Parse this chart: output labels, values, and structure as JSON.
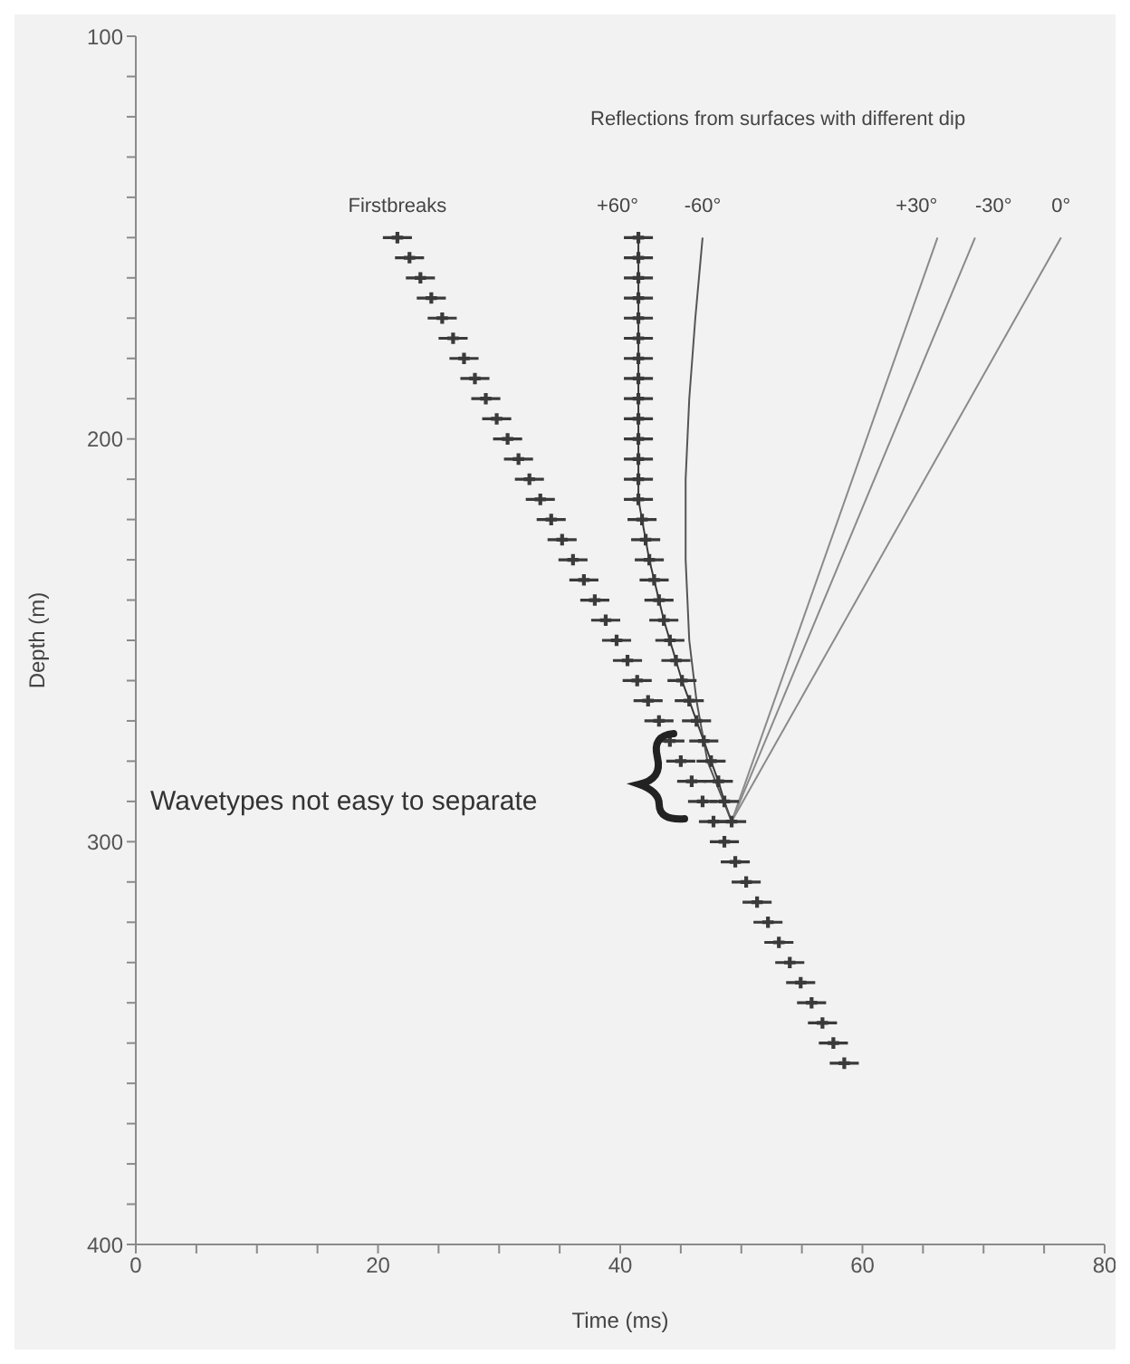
{
  "chart_data": {
    "type": "scatter",
    "xlabel": "Time (ms)",
    "ylabel": "Depth (m)",
    "xlim": [
      0,
      80
    ],
    "ylim": [
      400,
      100
    ],
    "xticks": [
      0,
      {
        "value": 5,
        "label": null
      },
      {
        "value": 10,
        "label": null
      },
      {
        "value": 15,
        "label": null
      },
      20,
      {
        "value": 25,
        "label": null
      },
      {
        "value": 30,
        "label": null
      },
      {
        "value": 35,
        "label": null
      },
      40,
      {
        "value": 45,
        "label": null
      },
      {
        "value": 50,
        "label": null
      },
      {
        "value": 55,
        "label": null
      },
      60,
      {
        "value": 65,
        "label": null
      },
      {
        "value": 70,
        "label": null
      },
      {
        "value": 75,
        "label": null
      },
      80
    ],
    "yticks": [
      100,
      {
        "value": 110,
        "label": null
      },
      {
        "value": 120,
        "label": null
      },
      {
        "value": 130,
        "label": null
      },
      {
        "value": 140,
        "label": null
      },
      {
        "value": 150,
        "label": null
      },
      {
        "value": 160,
        "label": null
      },
      {
        "value": 170,
        "label": null
      },
      {
        "value": 180,
        "label": null
      },
      {
        "value": 190,
        "label": null
      },
      200,
      {
        "value": 210,
        "label": null
      },
      {
        "value": 220,
        "label": null
      },
      {
        "value": 230,
        "label": null
      },
      {
        "value": 240,
        "label": null
      },
      {
        "value": 250,
        "label": null
      },
      {
        "value": 260,
        "label": null
      },
      {
        "value": 270,
        "label": null
      },
      {
        "value": 280,
        "label": null
      },
      {
        "value": 290,
        "label": null
      },
      300,
      {
        "value": 310,
        "label": null
      },
      {
        "value": 320,
        "label": null
      },
      {
        "value": 330,
        "label": null
      },
      {
        "value": 340,
        "label": null
      },
      {
        "value": 350,
        "label": null
      },
      {
        "value": 360,
        "label": null
      },
      {
        "value": 370,
        "label": null
      },
      {
        "value": 380,
        "label": null
      },
      {
        "value": 390,
        "label": null
      },
      400
    ],
    "marker": "cross",
    "line_style": "solid",
    "annotations": [
      "Reflections from surfaces with different dip",
      "Wavetypes not easy to separate"
    ],
    "series": [
      {
        "name": "Firstbreaks",
        "color": "#3a3a3a",
        "x": [
          21.6,
          22.6,
          23.5,
          24.4,
          25.3,
          26.2,
          27.1,
          28.0,
          28.9,
          29.8,
          30.7,
          31.6,
          32.5,
          33.4,
          34.3,
          35.2,
          36.1,
          37.0,
          37.9,
          38.8,
          39.7,
          40.6,
          41.4,
          42.3,
          43.2,
          44.1,
          45.0,
          45.9,
          46.8,
          47.7,
          48.6,
          49.5,
          50.4,
          51.3,
          52.2,
          53.1,
          54.0,
          54.9,
          55.8,
          56.7,
          57.6,
          58.5
        ],
        "values": [
          150,
          155,
          160,
          165,
          170,
          175,
          180,
          185,
          190,
          195,
          200,
          205,
          210,
          215,
          220,
          225,
          230,
          235,
          240,
          245,
          250,
          255,
          260,
          265,
          270,
          275,
          280,
          285,
          290,
          295,
          300,
          305,
          310,
          315,
          320,
          325,
          330,
          335,
          340,
          345,
          350,
          355
        ],
        "xerrors": [
          1.2,
          1.2,
          1.2,
          1.2,
          1.2,
          1.2,
          1.2,
          1.2,
          1.2,
          1.2,
          1.2,
          1.2,
          1.2,
          1.2,
          1.2,
          1.2,
          1.2,
          1.2,
          1.2,
          1.2,
          1.2,
          1.2,
          1.2,
          1.2,
          1.2,
          1.2,
          1.2,
          1.2,
          1.2,
          1.2,
          1.2,
          1.2,
          1.2,
          1.2,
          1.2,
          1.2,
          1.2,
          1.2,
          1.2,
          1.2,
          1.2,
          1.2
        ]
      },
      {
        "type": "line",
        "marker": "none",
        "color": "#3a3a3a",
        "x": [
          41.5,
          41.5,
          41.5,
          41.5,
          41.5,
          41.5,
          41.5,
          41.5,
          41.5,
          41.5,
          41.5,
          41.5,
          41.5,
          41.5,
          41.8,
          42.1,
          42.4,
          42.8,
          43.2,
          43.6,
          44.1,
          44.6,
          45.1,
          45.7,
          46.3,
          46.9,
          47.5,
          48.1,
          48.6,
          49.2
        ],
        "values": [
          150,
          155,
          160,
          165,
          170,
          175,
          180,
          185,
          190,
          195,
          200,
          205,
          210,
          215,
          220,
          225,
          230,
          235,
          240,
          245,
          250,
          255,
          260,
          265,
          270,
          275,
          280,
          285,
          290,
          295
        ]
      },
      {
        "name": "+60°",
        "type": "scatter",
        "color": "#3a3a3a",
        "x": [
          41.5,
          41.5,
          41.5,
          41.5,
          41.5,
          41.5,
          41.5,
          41.5,
          41.5,
          41.5,
          41.5,
          41.5,
          41.5,
          41.5,
          41.8,
          42.1,
          42.4,
          42.8,
          43.2,
          43.6,
          44.1,
          44.6,
          45.1,
          45.7,
          46.3,
          46.9,
          47.5,
          48.1,
          48.6,
          49.2
        ],
        "values": [
          150,
          155,
          160,
          165,
          170,
          175,
          180,
          185,
          190,
          195,
          200,
          205,
          210,
          215,
          220,
          225,
          230,
          235,
          240,
          245,
          250,
          255,
          260,
          265,
          270,
          275,
          280,
          285,
          290,
          295
        ],
        "xerrors": [
          1.2,
          1.2,
          1.2,
          1.2,
          1.2,
          1.2,
          1.2,
          1.2,
          1.2,
          1.2,
          1.2,
          1.2,
          1.2,
          1.2,
          1.2,
          1.2,
          1.2,
          1.2,
          1.2,
          1.2,
          1.2,
          1.2,
          1.2,
          1.2,
          1.2,
          1.2,
          1.2,
          1.2,
          1.2,
          1.2
        ]
      },
      {
        "name": "-60°",
        "type": "line",
        "marker": "none",
        "color": "#555555",
        "x": [
          46.8,
          46.2,
          45.7,
          45.4,
          45.4,
          45.7,
          46.3,
          47.2,
          49.2
        ],
        "values": [
          150,
          170,
          190,
          210,
          230,
          250,
          265,
          280,
          295
        ]
      },
      {
        "name": "+30°",
        "type": "line",
        "marker": "none",
        "color": "#8a8a8a",
        "x": [
          66.2,
          49.2
        ],
        "values": [
          150,
          295
        ]
      },
      {
        "name": "-30°",
        "type": "line",
        "marker": "none",
        "color": "#8a8a8a",
        "x": [
          69.3,
          49.2
        ],
        "values": [
          150,
          295
        ]
      },
      {
        "name": "0°",
        "type": "line",
        "marker": "none",
        "color": "#8a8a8a",
        "x": [
          76.4,
          49.2
        ],
        "values": [
          150,
          295
        ]
      }
    ]
  }
}
